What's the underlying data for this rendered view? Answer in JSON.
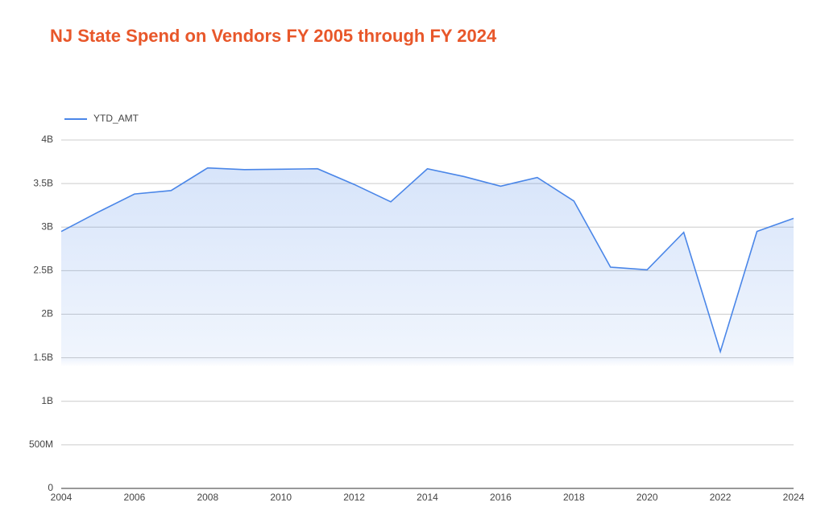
{
  "chart_data": {
    "type": "area",
    "title": "NJ State Spend on Vendors FY 2005 through FY 2024",
    "x": [
      2004,
      2005,
      2006,
      2007,
      2008,
      2009,
      2010,
      2011,
      2012,
      2013,
      2014,
      2015,
      2016,
      2017,
      2018,
      2019,
      2020,
      2021,
      2022,
      2023,
      2024
    ],
    "series": [
      {
        "name": "YTD_AMT",
        "color": "#4a86e8",
        "values": [
          2950000000,
          3170000000,
          3380000000,
          3420000000,
          3680000000,
          3660000000,
          3665000000,
          3670000000,
          3490000000,
          3290000000,
          3670000000,
          3580000000,
          3470000000,
          3570000000,
          3300000000,
          2540000000,
          2510000000,
          2940000000,
          1570000000,
          2950000000,
          3100000000
        ]
      }
    ],
    "xlim": [
      2004,
      2024
    ],
    "xticks": [
      2004,
      2006,
      2008,
      2010,
      2012,
      2014,
      2016,
      2018,
      2020,
      2022,
      2024
    ],
    "ylim": [
      0,
      4000000000
    ],
    "yticks": [
      0,
      {
        "value": 500000000,
        "label": "500M"
      },
      {
        "value": 1000000000,
        "label": "1B"
      },
      {
        "value": 1500000000,
        "label": "1.5B"
      },
      {
        "value": 2000000000,
        "label": "2B"
      },
      {
        "value": 2500000000,
        "label": "2.5B"
      },
      {
        "value": 3000000000,
        "label": "3B"
      },
      {
        "value": 3500000000,
        "label": "3.5B"
      },
      {
        "value": 4000000000,
        "label": "4B"
      }
    ],
    "grid": true,
    "legend": "top-left"
  }
}
